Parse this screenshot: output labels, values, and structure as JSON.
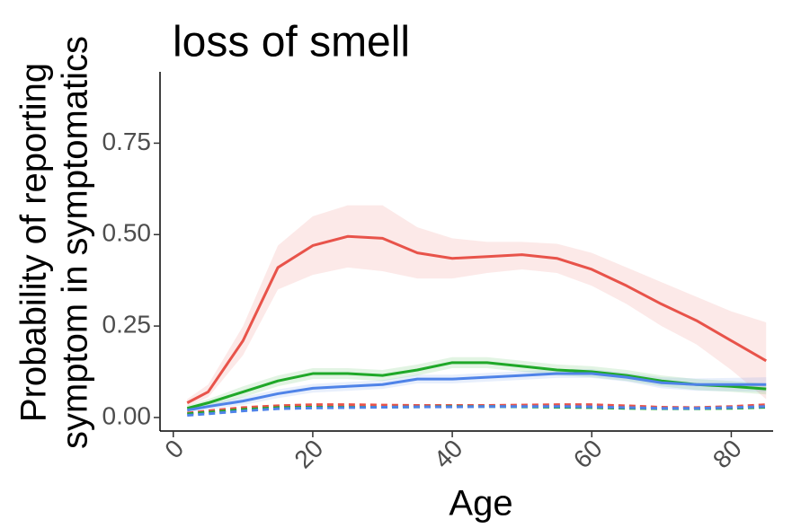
{
  "chart_data": {
    "type": "line",
    "title": "loss of smell",
    "xlabel": "Age",
    "ylabel": [
      "Probability of reporting",
      "symptom in symptomatics"
    ],
    "x": [
      2,
      5,
      10,
      15,
      20,
      25,
      30,
      35,
      40,
      45,
      50,
      55,
      60,
      65,
      70,
      75,
      80,
      85
    ],
    "series": [
      {
        "color": "#e8534a",
        "dashed": false,
        "values": [
          0.04,
          0.07,
          0.21,
          0.41,
          0.47,
          0.495,
          0.49,
          0.45,
          0.435,
          0.44,
          0.445,
          0.435,
          0.405,
          0.36,
          0.31,
          0.265,
          0.21,
          0.155
        ],
        "upper": [
          0.05,
          0.09,
          0.25,
          0.47,
          0.55,
          0.58,
          0.58,
          0.52,
          0.49,
          0.48,
          0.48,
          0.475,
          0.45,
          0.41,
          0.37,
          0.33,
          0.29,
          0.26
        ],
        "lower": [
          0.03,
          0.055,
          0.17,
          0.35,
          0.39,
          0.41,
          0.4,
          0.38,
          0.38,
          0.395,
          0.405,
          0.395,
          0.36,
          0.31,
          0.25,
          0.2,
          0.13,
          0.05
        ]
      },
      {
        "color": "#1fa828",
        "dashed": false,
        "values": [
          0.025,
          0.04,
          0.07,
          0.1,
          0.12,
          0.12,
          0.115,
          0.13,
          0.15,
          0.15,
          0.14,
          0.13,
          0.125,
          0.115,
          0.1,
          0.09,
          0.085,
          0.078
        ],
        "upper": [
          0.032,
          0.05,
          0.085,
          0.115,
          0.135,
          0.135,
          0.13,
          0.145,
          0.165,
          0.165,
          0.155,
          0.145,
          0.14,
          0.13,
          0.115,
          0.105,
          0.1,
          0.093
        ],
        "lower": [
          0.018,
          0.03,
          0.055,
          0.085,
          0.105,
          0.105,
          0.1,
          0.115,
          0.135,
          0.135,
          0.125,
          0.115,
          0.11,
          0.1,
          0.085,
          0.075,
          0.07,
          0.063
        ]
      },
      {
        "color": "#4f83e8",
        "dashed": false,
        "values": [
          0.02,
          0.03,
          0.045,
          0.065,
          0.08,
          0.085,
          0.09,
          0.105,
          0.105,
          0.11,
          0.115,
          0.12,
          0.12,
          0.11,
          0.095,
          0.09,
          0.09,
          0.09
        ],
        "upper": [
          0.026,
          0.038,
          0.056,
          0.077,
          0.092,
          0.097,
          0.102,
          0.117,
          0.117,
          0.122,
          0.127,
          0.132,
          0.132,
          0.122,
          0.11,
          0.107,
          0.108,
          0.11
        ],
        "lower": [
          0.014,
          0.022,
          0.034,
          0.053,
          0.068,
          0.073,
          0.078,
          0.093,
          0.093,
          0.098,
          0.103,
          0.108,
          0.108,
          0.098,
          0.08,
          0.073,
          0.072,
          0.07
        ]
      },
      {
        "color": "#e8534a",
        "dashed": true,
        "values": [
          0.012,
          0.018,
          0.027,
          0.032,
          0.035,
          0.035,
          0.034,
          0.033,
          0.033,
          0.033,
          0.034,
          0.035,
          0.035,
          0.032,
          0.028,
          0.027,
          0.03,
          0.035
        ]
      },
      {
        "color": "#1fa828",
        "dashed": true,
        "values": [
          0.01,
          0.014,
          0.022,
          0.027,
          0.028,
          0.028,
          0.028,
          0.029,
          0.03,
          0.03,
          0.029,
          0.028,
          0.027,
          0.025,
          0.024,
          0.024,
          0.025,
          0.028
        ]
      },
      {
        "color": "#4f83e8",
        "dashed": true,
        "values": [
          0.006,
          0.01,
          0.018,
          0.024,
          0.026,
          0.027,
          0.028,
          0.029,
          0.029,
          0.03,
          0.03,
          0.03,
          0.029,
          0.027,
          0.025,
          0.025,
          0.027,
          0.03
        ]
      }
    ],
    "xlim": [
      -1.9,
      86
    ],
    "xticks": [
      0,
      20,
      40,
      60,
      80
    ],
    "ylim": [
      -0.037,
      0.945
    ],
    "yticks": [
      {
        "value": 0,
        "label": "0.00"
      },
      {
        "value": 0.25,
        "label": "0.25"
      },
      {
        "value": 0.5,
        "label": "0.50"
      },
      {
        "value": 0.75,
        "label": "0.75"
      }
    ],
    "grid": false
  }
}
